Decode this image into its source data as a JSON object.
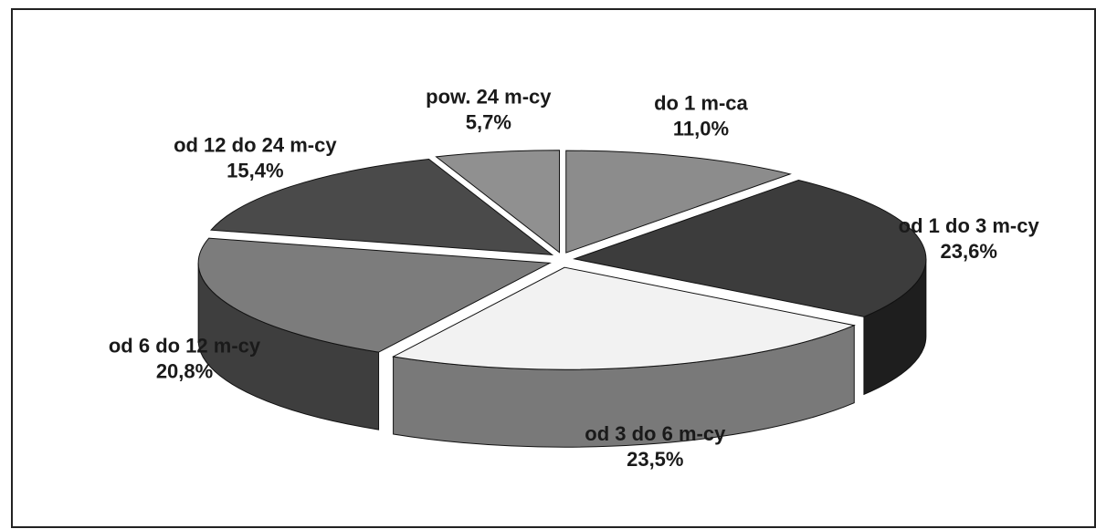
{
  "chart_data": {
    "type": "pie",
    "categories": [
      "do 1 m-ca",
      "od 1 do 3 m-cy",
      "od 3 do 6 m-cy",
      "od 6 do 12 m-cy",
      "od 12 do 24 m-cy",
      "pow. 24 m-cy"
    ],
    "values": [
      11.0,
      23.6,
      23.5,
      20.8,
      15.4,
      5.7
    ],
    "value_labels": [
      "11,0%",
      "23,6%",
      "23,5%",
      "20,8%",
      "15,4%",
      "5,7%"
    ],
    "colors": [
      "#8c8c8c",
      "#3c3c3c",
      "#f2f2f2",
      "#7c7c7c",
      "#4a4a4a",
      "#909090"
    ]
  }
}
